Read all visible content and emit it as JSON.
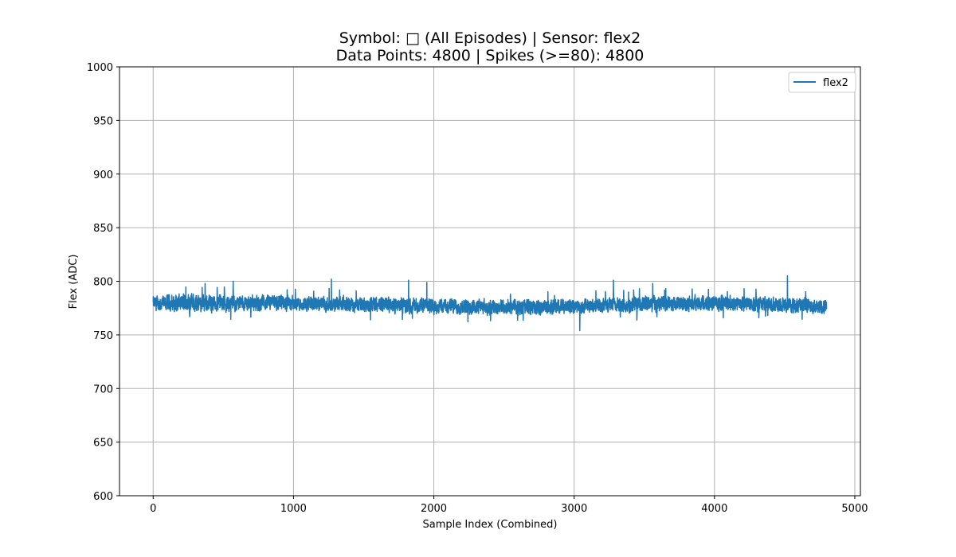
{
  "chart_data": {
    "type": "line",
    "title": "Symbol: □ (All Episodes) | Sensor: flex2",
    "subtitle": "Data Points: 4800 | Spikes (>=80): 4800",
    "xlabel": "Sample Index (Combined)",
    "ylabel": "Flex (ADC)",
    "xlim": [
      -240,
      5040
    ],
    "ylim": [
      600,
      1000
    ],
    "x_ticks": [
      0,
      1000,
      2000,
      3000,
      4000,
      5000
    ],
    "y_ticks": [
      600,
      650,
      700,
      750,
      800,
      850,
      900,
      950,
      1000
    ],
    "grid": true,
    "legend_position": "top-right",
    "series": [
      {
        "name": "flex2",
        "color": "#1f77b4",
        "n_points": 4800,
        "x_start": 0,
        "x_end": 4799,
        "mean": 779,
        "typical_range": [
          768,
          790
        ],
        "envelope": [
          {
            "x": 0,
            "min": 768,
            "max": 790
          },
          {
            "x": 250,
            "min": 767,
            "max": 793
          },
          {
            "x": 500,
            "min": 768,
            "max": 791
          },
          {
            "x": 1000,
            "min": 769,
            "max": 790
          },
          {
            "x": 1500,
            "min": 768,
            "max": 789
          },
          {
            "x": 2000,
            "min": 766,
            "max": 788
          },
          {
            "x": 2500,
            "min": 765,
            "max": 787
          },
          {
            "x": 3000,
            "min": 766,
            "max": 786
          },
          {
            "x": 3500,
            "min": 768,
            "max": 790
          },
          {
            "x": 4000,
            "min": 769,
            "max": 790
          },
          {
            "x": 4500,
            "min": 768,
            "max": 789
          },
          {
            "x": 4799,
            "min": 767,
            "max": 786
          }
        ],
        "spikes": [
          {
            "x": 370,
            "y": 798
          },
          {
            "x": 570,
            "y": 800
          },
          {
            "x": 1270,
            "y": 802
          },
          {
            "x": 1820,
            "y": 801
          },
          {
            "x": 1950,
            "y": 799
          },
          {
            "x": 3040,
            "y": 754
          },
          {
            "x": 3280,
            "y": 801
          },
          {
            "x": 3560,
            "y": 798
          },
          {
            "x": 4520,
            "y": 805
          }
        ]
      }
    ]
  }
}
